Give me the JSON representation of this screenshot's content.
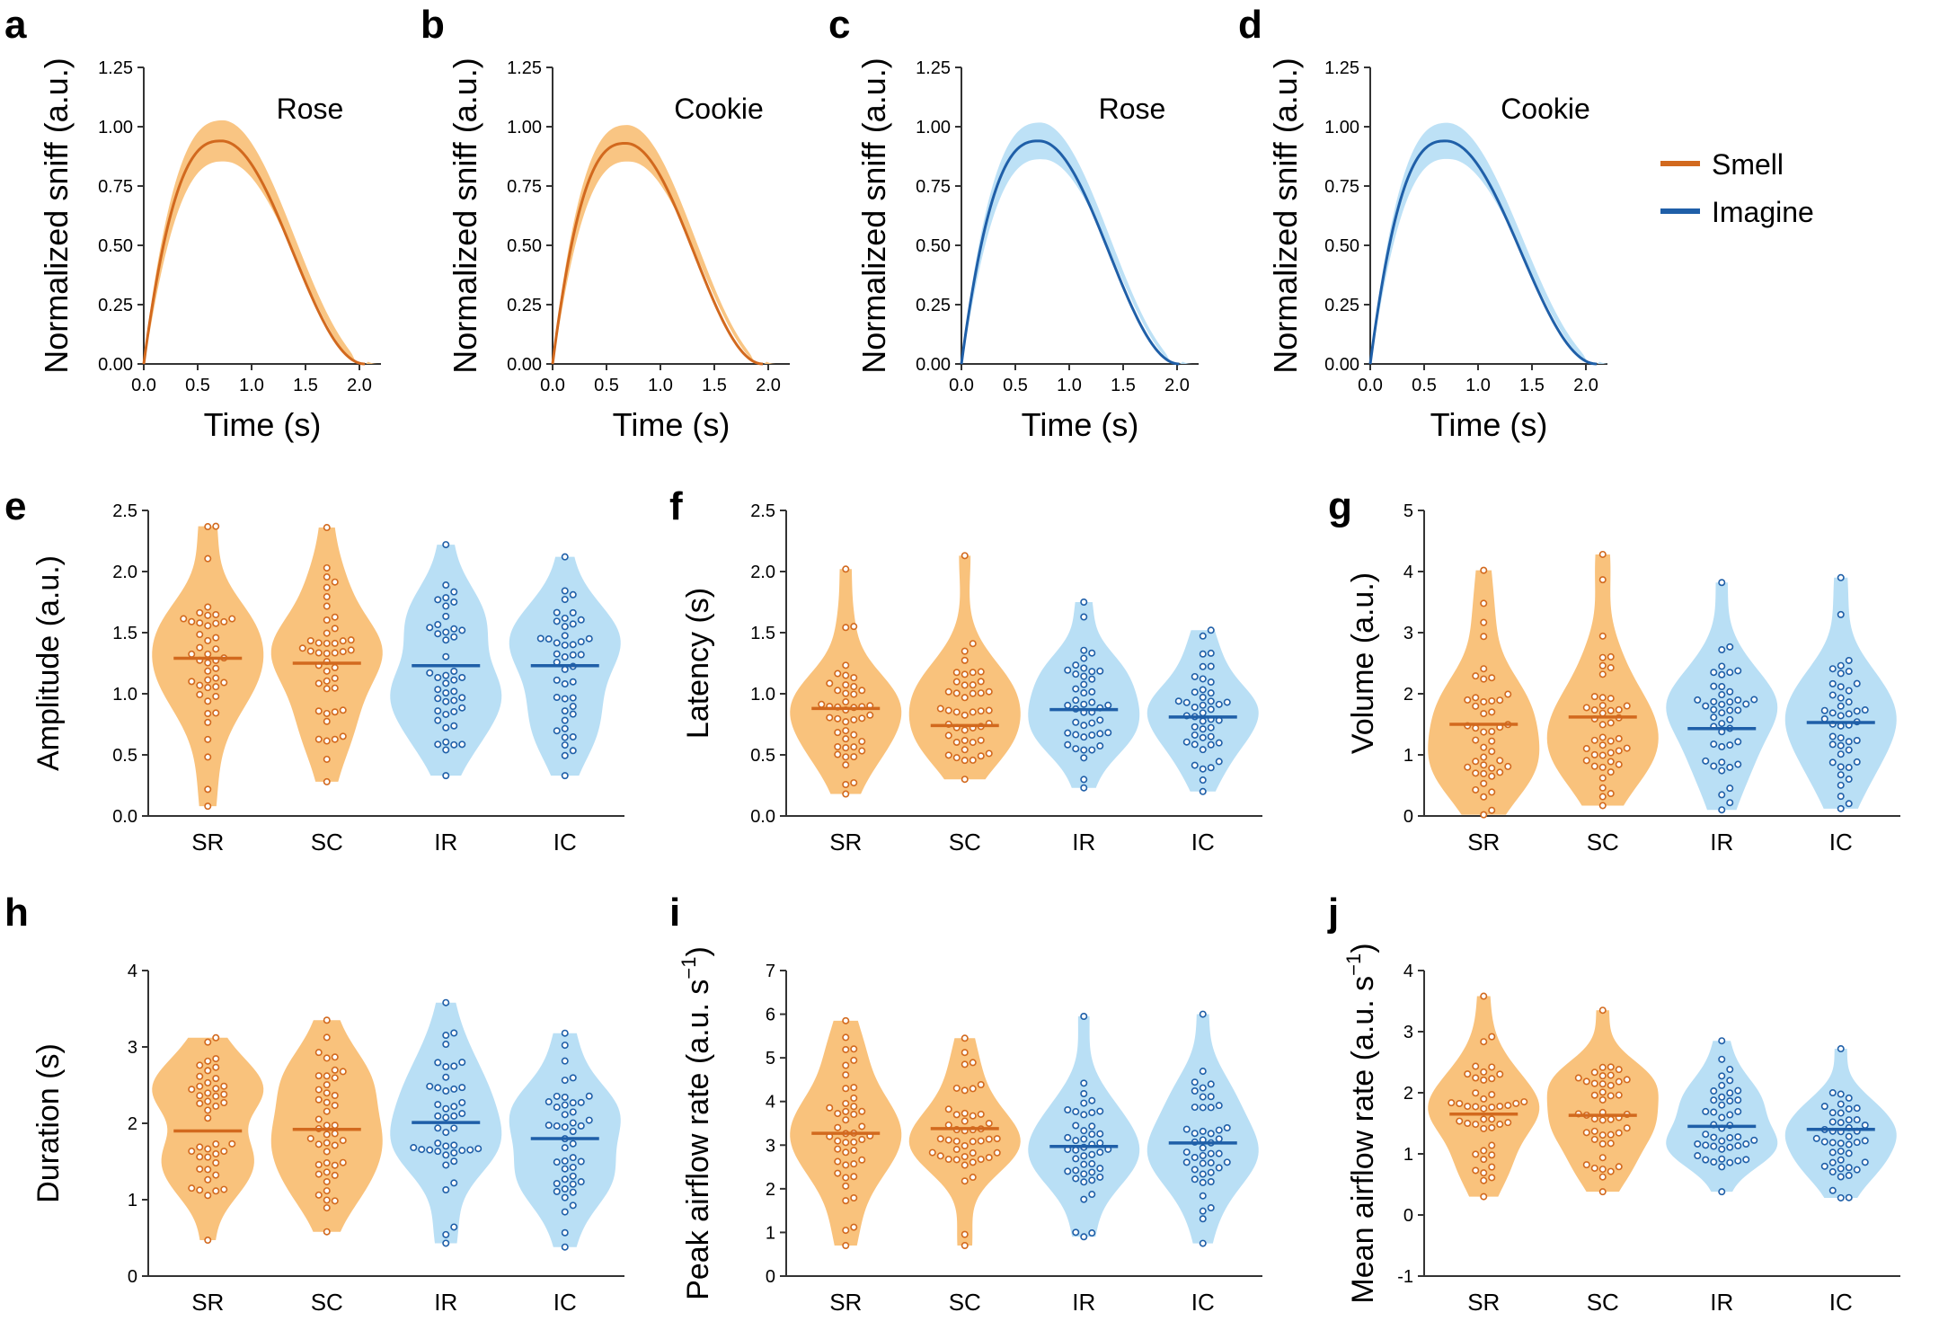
{
  "colors": {
    "smell": "#d2691e",
    "smell_fill": "#f9c27c",
    "imagine": "#1f5fa8",
    "imagine_fill": "#b9dff5"
  },
  "legend": {
    "smell": "Smell",
    "imagine": "Imagine"
  },
  "chart_data": [
    {
      "id": "a",
      "panel_label": "a",
      "type": "line",
      "title": "Rose",
      "condition": "smell",
      "xlabel": "Time (s)",
      "ylabel": "Normalized sniff (a.u.)",
      "xlim": [
        0,
        2.2
      ],
      "ylim": [
        0,
        1.25
      ],
      "x_ticks": [
        "0.0",
        "0.5",
        "1.0",
        "1.5",
        "2.0"
      ],
      "y_ticks": [
        "0.00",
        "0.25",
        "0.50",
        "0.75",
        "1.00",
        "1.25"
      ],
      "peak_x": 0.72,
      "end_x": 2.05,
      "peak_y": 0.94,
      "band": 0.09,
      "series": [
        {
          "name": "Smell",
          "x": [
            0,
            0.1,
            0.2,
            0.3,
            0.4,
            0.5,
            0.6,
            0.7,
            0.8,
            0.9,
            1.0,
            1.2,
            1.4,
            1.6,
            1.8,
            2.0,
            2.05
          ],
          "y": [
            0,
            0.35,
            0.6,
            0.77,
            0.87,
            0.92,
            0.94,
            0.94,
            0.93,
            0.9,
            0.85,
            0.72,
            0.56,
            0.4,
            0.23,
            0.04,
            0
          ]
        }
      ]
    },
    {
      "id": "b",
      "panel_label": "b",
      "type": "line",
      "title": "Cookie",
      "condition": "smell",
      "xlabel": "Time (s)",
      "ylabel": "Normalized sniff (a.u.)",
      "xlim": [
        0,
        2.2
      ],
      "ylim": [
        0,
        1.25
      ],
      "x_ticks": [
        "0.0",
        "0.5",
        "1.0",
        "1.5",
        "2.0"
      ],
      "y_ticks": [
        "0.00",
        "0.25",
        "0.50",
        "0.75",
        "1.00",
        "1.25"
      ],
      "peak_x": 0.68,
      "end_x": 1.95,
      "peak_y": 0.93,
      "band": 0.08,
      "series": [
        {
          "name": "Smell",
          "x": [
            0,
            0.1,
            0.2,
            0.3,
            0.4,
            0.5,
            0.6,
            0.7,
            0.8,
            0.9,
            1.0,
            1.2,
            1.4,
            1.6,
            1.8,
            1.95
          ],
          "y": [
            0,
            0.37,
            0.63,
            0.79,
            0.88,
            0.92,
            0.93,
            0.93,
            0.91,
            0.88,
            0.83,
            0.69,
            0.52,
            0.34,
            0.16,
            0
          ]
        }
      ]
    },
    {
      "id": "c",
      "panel_label": "c",
      "type": "line",
      "title": "Rose",
      "condition": "imagine",
      "xlabel": "Time (s)",
      "ylabel": "Normalized sniff (a.u.)",
      "xlim": [
        0,
        2.2
      ],
      "ylim": [
        0,
        1.25
      ],
      "x_ticks": [
        "0.0",
        "0.5",
        "1.0",
        "1.5",
        "2.0"
      ],
      "y_ticks": [
        "0.00",
        "0.25",
        "0.50",
        "0.75",
        "1.00",
        "1.25"
      ],
      "peak_x": 0.72,
      "end_x": 2.02,
      "peak_y": 0.94,
      "band": 0.08,
      "series": [
        {
          "name": "Imagine",
          "x": [
            0,
            0.1,
            0.2,
            0.3,
            0.4,
            0.5,
            0.6,
            0.7,
            0.8,
            0.9,
            1.0,
            1.2,
            1.4,
            1.6,
            1.8,
            2.0,
            2.02
          ],
          "y": [
            0,
            0.34,
            0.59,
            0.76,
            0.86,
            0.91,
            0.93,
            0.94,
            0.93,
            0.89,
            0.84,
            0.71,
            0.55,
            0.38,
            0.21,
            0.02,
            0
          ]
        }
      ]
    },
    {
      "id": "d",
      "panel_label": "d",
      "type": "line",
      "title": "Cookie",
      "condition": "imagine",
      "xlabel": "Time (s)",
      "ylabel": "Normalized sniff (a.u.)",
      "xlim": [
        0,
        2.2
      ],
      "ylim": [
        0,
        1.25
      ],
      "x_ticks": [
        "0.0",
        "0.5",
        "1.0",
        "1.5",
        "2.0"
      ],
      "y_ticks": [
        "0.00",
        "0.25",
        "0.50",
        "0.75",
        "1.00",
        "1.25"
      ],
      "peak_x": 0.7,
      "end_x": 2.1,
      "peak_y": 0.94,
      "band": 0.08,
      "series": [
        {
          "name": "Imagine",
          "x": [
            0,
            0.1,
            0.2,
            0.3,
            0.4,
            0.5,
            0.6,
            0.7,
            0.8,
            0.9,
            1.0,
            1.2,
            1.4,
            1.6,
            1.8,
            2.0,
            2.1
          ],
          "y": [
            0,
            0.35,
            0.6,
            0.77,
            0.87,
            0.92,
            0.94,
            0.94,
            0.93,
            0.9,
            0.86,
            0.74,
            0.59,
            0.43,
            0.27,
            0.1,
            0
          ]
        }
      ]
    },
    {
      "id": "e",
      "panel_label": "e",
      "type": "violin",
      "ylabel": "Amplitude (a.u.)",
      "ylim": [
        0,
        2.5
      ],
      "y_ticks": [
        "0.0",
        "0.5",
        "1.0",
        "1.5",
        "2.0",
        "2.5"
      ],
      "categories": [
        "SR",
        "SC",
        "IR",
        "IC"
      ],
      "conditions": [
        "smell",
        "smell",
        "imagine",
        "imagine"
      ],
      "medians": [
        1.29,
        1.25,
        1.23,
        1.23
      ],
      "ranges": [
        [
          0.08,
          2.37
        ],
        [
          0.28,
          2.36
        ],
        [
          0.33,
          2.22
        ],
        [
          0.33,
          2.12
        ]
      ],
      "spreads": [
        0.42,
        0.37,
        0.42,
        0.42
      ],
      "n_points": 44
    },
    {
      "id": "f",
      "panel_label": "f",
      "type": "violin",
      "ylabel": "Latency (s)",
      "ylim": [
        0,
        2.5
      ],
      "y_ticks": [
        "0.0",
        "0.5",
        "1.0",
        "1.5",
        "2.0",
        "2.5"
      ],
      "categories": [
        "SR",
        "SC",
        "IR",
        "IC"
      ],
      "conditions": [
        "smell",
        "smell",
        "imagine",
        "imagine"
      ],
      "medians": [
        0.88,
        0.74,
        0.87,
        0.81
      ],
      "ranges": [
        [
          0.18,
          2.02
        ],
        [
          0.3,
          2.13
        ],
        [
          0.23,
          1.75
        ],
        [
          0.2,
          1.52
        ]
      ],
      "spreads": [
        0.35,
        0.3,
        0.28,
        0.3
      ],
      "n_points": 44
    },
    {
      "id": "g",
      "panel_label": "g",
      "type": "violin",
      "ylabel": "Volume (a.u.)",
      "ylim": [
        0,
        5
      ],
      "y_ticks": [
        "0",
        "1",
        "2",
        "3",
        "4",
        "5"
      ],
      "categories": [
        "SR",
        "SC",
        "IR",
        "IC"
      ],
      "conditions": [
        "smell",
        "smell",
        "imagine",
        "imagine"
      ],
      "medians": [
        1.5,
        1.62,
        1.43,
        1.53
      ],
      "ranges": [
        [
          0.02,
          4.02
        ],
        [
          0.17,
          4.28
        ],
        [
          0.1,
          3.82
        ],
        [
          0.12,
          3.9
        ]
      ],
      "spreads": [
        0.85,
        0.8,
        0.8,
        0.85
      ],
      "n_points": 44
    },
    {
      "id": "h",
      "panel_label": "h",
      "type": "violin",
      "ylabel": "Duration (s)",
      "ylim": [
        0,
        4
      ],
      "y_ticks": [
        "0",
        "1",
        "2",
        "3",
        "4"
      ],
      "categories": [
        "SR",
        "SC",
        "IR",
        "IC"
      ],
      "conditions": [
        "smell",
        "smell",
        "imagine",
        "imagine"
      ],
      "medians": [
        1.9,
        1.92,
        2.01,
        1.8
      ],
      "ranges": [
        [
          0.47,
          3.12
        ],
        [
          0.58,
          3.35
        ],
        [
          0.43,
          3.58
        ],
        [
          0.38,
          3.18
        ]
      ],
      "spreads": [
        0.62,
        0.65,
        0.6,
        0.62
      ],
      "n_points": 44
    },
    {
      "id": "i",
      "panel_label": "i",
      "type": "violin",
      "ylabel": "Peak airflow rate (a.u. s",
      "ylabel_sup": "−1",
      "ylabel_end": ")",
      "ylim": [
        0,
        7
      ],
      "y_ticks": [
        "0",
        "1",
        "2",
        "3",
        "4",
        "5",
        "6",
        "7"
      ],
      "categories": [
        "SR",
        "SC",
        "IR",
        "IC"
      ],
      "conditions": [
        "smell",
        "smell",
        "imagine",
        "imagine"
      ],
      "medians": [
        3.27,
        3.38,
        2.97,
        3.05
      ],
      "ranges": [
        [
          0.7,
          5.85
        ],
        [
          0.7,
          5.45
        ],
        [
          0.9,
          5.95
        ],
        [
          0.75,
          6.0
        ]
      ],
      "spreads": [
        1.0,
        0.85,
        0.95,
        0.95
      ],
      "n_points": 44
    },
    {
      "id": "j",
      "panel_label": "j",
      "type": "violin",
      "ylabel": "Mean airflow rate (a.u. s",
      "ylabel_sup": "−1",
      "ylabel_end": ")",
      "ylim": [
        -1,
        4
      ],
      "y_ticks": [
        "-1",
        "0",
        "1",
        "2",
        "3",
        "4"
      ],
      "categories": [
        "SR",
        "SC",
        "IR",
        "IC"
      ],
      "conditions": [
        "smell",
        "smell",
        "imagine",
        "imagine"
      ],
      "medians": [
        1.65,
        1.63,
        1.45,
        1.4
      ],
      "ranges": [
        [
          0.3,
          3.58
        ],
        [
          0.38,
          3.35
        ],
        [
          0.38,
          2.85
        ],
        [
          0.28,
          2.72
        ]
      ],
      "spreads": [
        0.6,
        0.58,
        0.5,
        0.52
      ],
      "n_points": 44
    }
  ]
}
